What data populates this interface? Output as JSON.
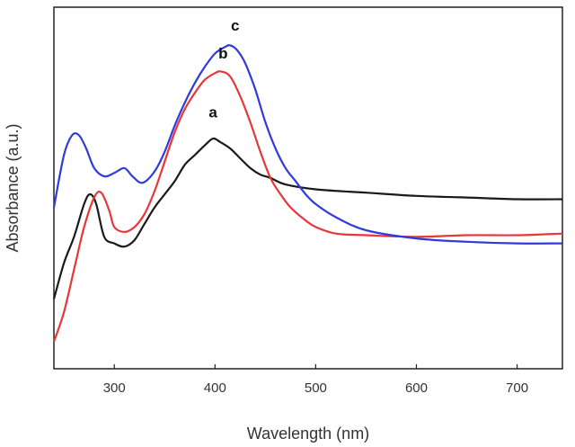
{
  "chart_data": {
    "type": "line",
    "title": "",
    "xlabel": "Wavelength (nm)",
    "ylabel": "Absorbance (a.u.)",
    "xlim": [
      240,
      745
    ],
    "ylim": [
      0,
      1
    ],
    "x_ticks": [
      300,
      400,
      500,
      600,
      700
    ],
    "x_tick_labels": [
      "300",
      "400",
      "500",
      "600",
      "700"
    ],
    "y_ticks_labeled": false,
    "grid": false,
    "series": [
      {
        "name": "a",
        "label": "a",
        "color": "#1a1a1a",
        "label_at": [
          398,
          0.735
        ],
        "x": [
          240,
          250,
          260,
          270,
          276,
          282,
          290,
          300,
          310,
          320,
          330,
          340,
          350,
          360,
          370,
          380,
          390,
          398,
          405,
          415,
          425,
          435,
          445,
          455,
          470,
          500,
          550,
          600,
          650,
          700,
          745
        ],
        "y": [
          0.18,
          0.29,
          0.37,
          0.47,
          0.5,
          0.47,
          0.37,
          0.35,
          0.34,
          0.36,
          0.41,
          0.46,
          0.5,
          0.54,
          0.59,
          0.62,
          0.65,
          0.67,
          0.66,
          0.64,
          0.61,
          0.58,
          0.56,
          0.55,
          0.53,
          0.515,
          0.505,
          0.495,
          0.49,
          0.485,
          0.485
        ]
      },
      {
        "name": "b",
        "label": "b",
        "color": "#e8363a",
        "label_at": [
          408,
          0.915
        ],
        "x": [
          240,
          250,
          260,
          270,
          280,
          287,
          295,
          300,
          310,
          320,
          330,
          340,
          350,
          360,
          370,
          380,
          390,
          400,
          406,
          415,
          425,
          435,
          445,
          455,
          465,
          475,
          490,
          500,
          520,
          550,
          600,
          650,
          700,
          745
        ],
        "y": [
          0.05,
          0.14,
          0.27,
          0.4,
          0.49,
          0.505,
          0.45,
          0.4,
          0.385,
          0.4,
          0.44,
          0.51,
          0.6,
          0.69,
          0.76,
          0.81,
          0.85,
          0.87,
          0.875,
          0.86,
          0.8,
          0.72,
          0.63,
          0.55,
          0.5,
          0.46,
          0.42,
          0.4,
          0.38,
          0.375,
          0.37,
          0.375,
          0.375,
          0.38
        ]
      },
      {
        "name": "c",
        "label": "c",
        "color": "#2f3bdc",
        "label_at": [
          420,
          1.0
        ],
        "x": [
          240,
          250,
          258,
          265,
          272,
          280,
          290,
          300,
          310,
          318,
          328,
          340,
          350,
          360,
          370,
          380,
          390,
          400,
          410,
          415,
          422,
          430,
          440,
          450,
          460,
          470,
          480,
          490,
          500,
          520,
          550,
          600,
          650,
          700,
          745
        ],
        "y": [
          0.46,
          0.62,
          0.68,
          0.68,
          0.64,
          0.58,
          0.555,
          0.565,
          0.58,
          0.555,
          0.535,
          0.57,
          0.63,
          0.71,
          0.78,
          0.84,
          0.89,
          0.93,
          0.95,
          0.955,
          0.94,
          0.9,
          0.82,
          0.72,
          0.64,
          0.58,
          0.54,
          0.5,
          0.47,
          0.43,
          0.39,
          0.365,
          0.355,
          0.35,
          0.35
        ]
      }
    ]
  }
}
